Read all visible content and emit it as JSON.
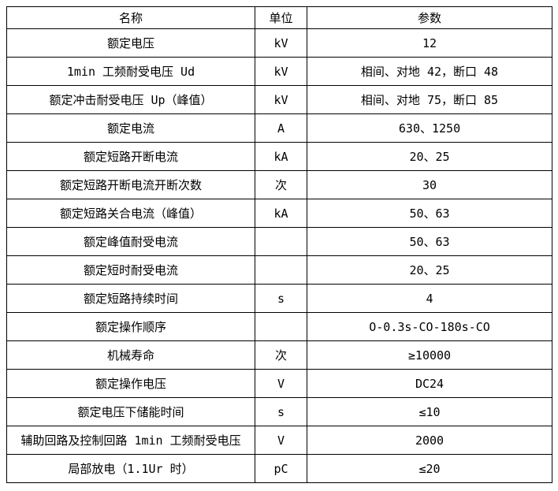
{
  "table": {
    "title": "spec-parameter-table",
    "colors": {
      "background": "#ffffff",
      "border": "#000000",
      "text": "#000000"
    },
    "columns": [
      {
        "key": "name",
        "label": "名称"
      },
      {
        "key": "unit",
        "label": "单位"
      },
      {
        "key": "value",
        "label": "参数"
      }
    ],
    "rows": [
      {
        "name": "额定电压",
        "unit": "kV",
        "value": "12"
      },
      {
        "name": "1min 工频耐受电压 Ud",
        "unit": "kV",
        "value": "相间、对地 42，断口 48"
      },
      {
        "name": "额定冲击耐受电压 Up（峰值）",
        "unit": "kV",
        "value": "相间、对地 75，断口 85"
      },
      {
        "name": "额定电流",
        "unit": "A",
        "value": "630、1250"
      },
      {
        "name": "额定短路开断电流",
        "unit": "kA",
        "value": "20、25"
      },
      {
        "name": "额定短路开断电流开断次数",
        "unit": "次",
        "value": "30"
      },
      {
        "name": "额定短路关合电流（峰值）",
        "unit": "kA",
        "value": "50、63"
      },
      {
        "name": "额定峰值耐受电流",
        "unit": "",
        "value": "50、63"
      },
      {
        "name": "额定短时耐受电流",
        "unit": "",
        "value": "20、25"
      },
      {
        "name": "额定短路持续时间",
        "unit": "s",
        "value": "4"
      },
      {
        "name": "额定操作顺序",
        "unit": "",
        "value": "O-0.3s-CO-180s-CO"
      },
      {
        "name": "机械寿命",
        "unit": "次",
        "value": "≥10000"
      },
      {
        "name": "额定操作电压",
        "unit": "V",
        "value": "DC24"
      },
      {
        "name": "额定电压下储能时间",
        "unit": "s",
        "value": "≤10"
      },
      {
        "name": "辅助回路及控制回路 1min 工频耐受电压",
        "unit": "V",
        "value": "2000"
      },
      {
        "name": "局部放电（1.1Ur 时）",
        "unit": "pC",
        "value": "≤20"
      }
    ]
  }
}
